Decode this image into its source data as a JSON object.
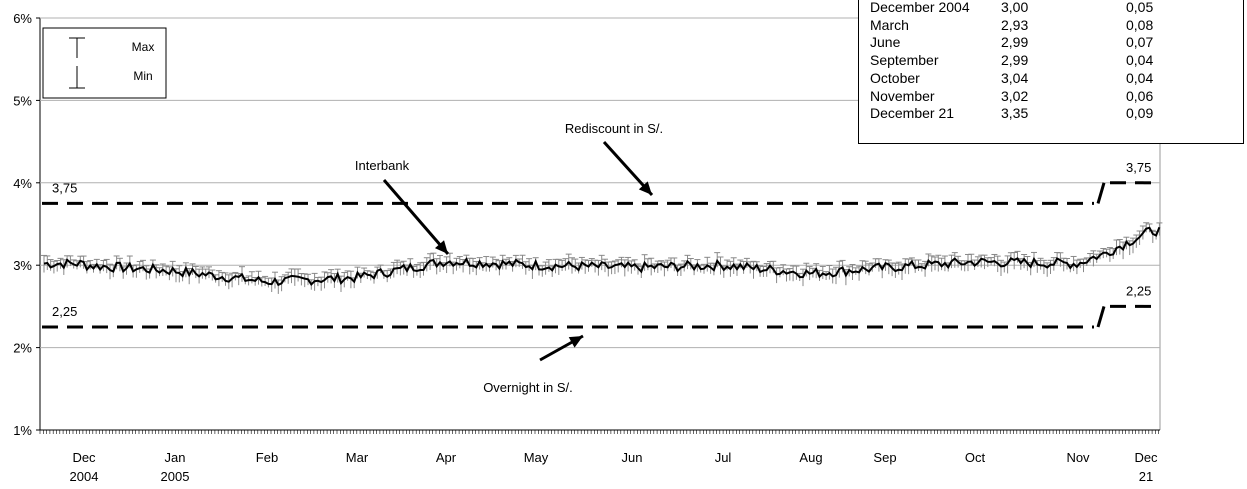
{
  "chart_data": {
    "type": "line",
    "y_axis": {
      "ticks": [
        "1%",
        "2%",
        "3%",
        "4%",
        "5%",
        "6%"
      ],
      "ylim": [
        1,
        6
      ],
      "grid": true
    },
    "x_axis": {
      "months": [
        {
          "label": "Dec",
          "sub": "2004"
        },
        {
          "label": "Jan",
          "sub": "2005"
        },
        {
          "label": "Feb",
          "sub": ""
        },
        {
          "label": "Mar",
          "sub": ""
        },
        {
          "label": "Apr",
          "sub": ""
        },
        {
          "label": "May",
          "sub": ""
        },
        {
          "label": "Jun",
          "sub": ""
        },
        {
          "label": "Jul",
          "sub": ""
        },
        {
          "label": "Aug",
          "sub": ""
        },
        {
          "label": "Sep",
          "sub": ""
        },
        {
          "label": "Oct",
          "sub": ""
        },
        {
          "label": "Nov",
          "sub": ""
        },
        {
          "label": "Dec",
          "sub": "21"
        }
      ]
    },
    "series": [
      {
        "name": "Rediscount in S/.",
        "style": "dashed",
        "color": "#000000",
        "segments": [
          {
            "from_month": "Dec 2004",
            "to_month": "Nov",
            "value": 3.75
          },
          {
            "from_month": "Dec",
            "to_month": "Dec 21",
            "value": 4.0
          }
        ]
      },
      {
        "name": "Overnight in S/.",
        "style": "dashed",
        "color": "#000000",
        "segments": [
          {
            "from_month": "Dec 2004",
            "to_month": "Nov",
            "value": 2.25
          },
          {
            "from_month": "Dec",
            "to_month": "Dec 21",
            "value": 2.5
          }
        ]
      },
      {
        "name": "Interbank",
        "style": "solid",
        "color": "#000000",
        "approx_monthly": [
          3.0,
          2.93,
          2.8,
          2.85,
          3.05,
          3.0,
          2.97,
          3.0,
          2.9,
          2.97,
          3.04,
          3.02,
          3.35
        ],
        "min_max_bars": true
      }
    ],
    "annotations": {
      "rediscount_label": "Rediscount in S/.",
      "interbank_label": "Interbank",
      "overnight_label": "Overnight in S/.",
      "left_upper_value": "3,75",
      "left_lower_value": "2,25",
      "right_upper_value": "3,75",
      "right_lower_value": "2,25"
    },
    "legend": {
      "max_label": "Max",
      "min_label": "Min",
      "placement": "top-left"
    }
  },
  "table": {
    "rows": [
      [
        "December 2004",
        "3,00",
        "0,05"
      ],
      [
        "March",
        "2,93",
        "0,08"
      ],
      [
        "June",
        "2,99",
        "0,07"
      ],
      [
        "September",
        "2,99",
        "0,04"
      ],
      [
        "October",
        "3,04",
        "0,04"
      ],
      [
        "November",
        "3,02",
        "0,06"
      ],
      [
        "December 21",
        "3,35",
        "0,09"
      ]
    ]
  }
}
